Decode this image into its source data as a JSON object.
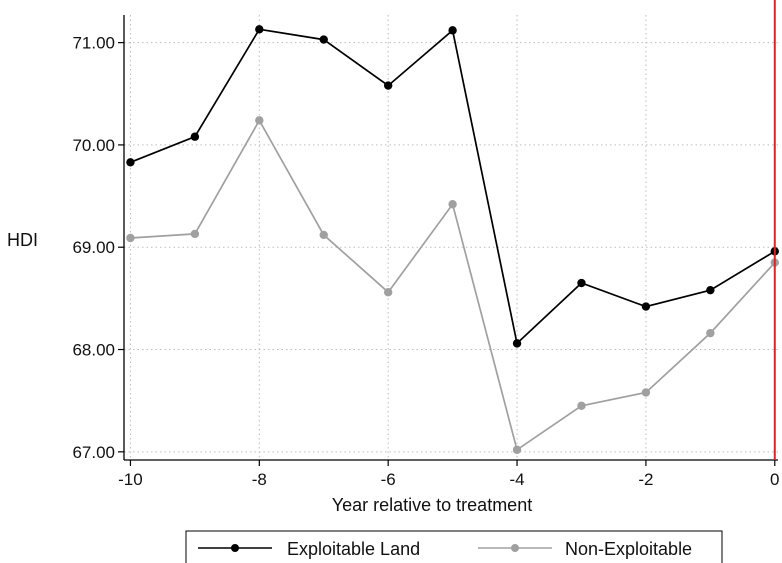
{
  "chart_data": {
    "type": "line",
    "xlabel": "Year relative to treatment",
    "ylabel": "HDI",
    "x": [
      -10,
      -9,
      -8,
      -7,
      -6,
      -5,
      -4,
      -3,
      -2,
      -1,
      0
    ],
    "xticks": [
      -10,
      -8,
      -6,
      -4,
      -2,
      0
    ],
    "xtick_labels": [
      "-10",
      "-8",
      "-6",
      "-4",
      "-2",
      "0"
    ],
    "yticks": [
      67,
      68,
      69,
      70,
      71
    ],
    "ytick_labels": [
      "67.00",
      "68.00",
      "69.00",
      "70.00",
      "71.00"
    ],
    "xlim": [
      -10.1,
      0.05
    ],
    "ylim": [
      66.92,
      71.27
    ],
    "grid": true,
    "reference_line": {
      "x": 0,
      "color": "#d62728"
    },
    "legend_position": "bottom",
    "series": [
      {
        "name": "Exploitable Land",
        "color": "#000000",
        "values": [
          69.83,
          70.08,
          71.13,
          71.03,
          70.58,
          71.12,
          68.06,
          68.65,
          68.42,
          68.58,
          68.96
        ]
      },
      {
        "name": "Non-Exploitable",
        "color": "#a0a0a0",
        "values": [
          69.09,
          69.13,
          70.24,
          69.12,
          68.56,
          69.42,
          67.02,
          67.45,
          67.58,
          68.16,
          68.85
        ]
      }
    ]
  }
}
